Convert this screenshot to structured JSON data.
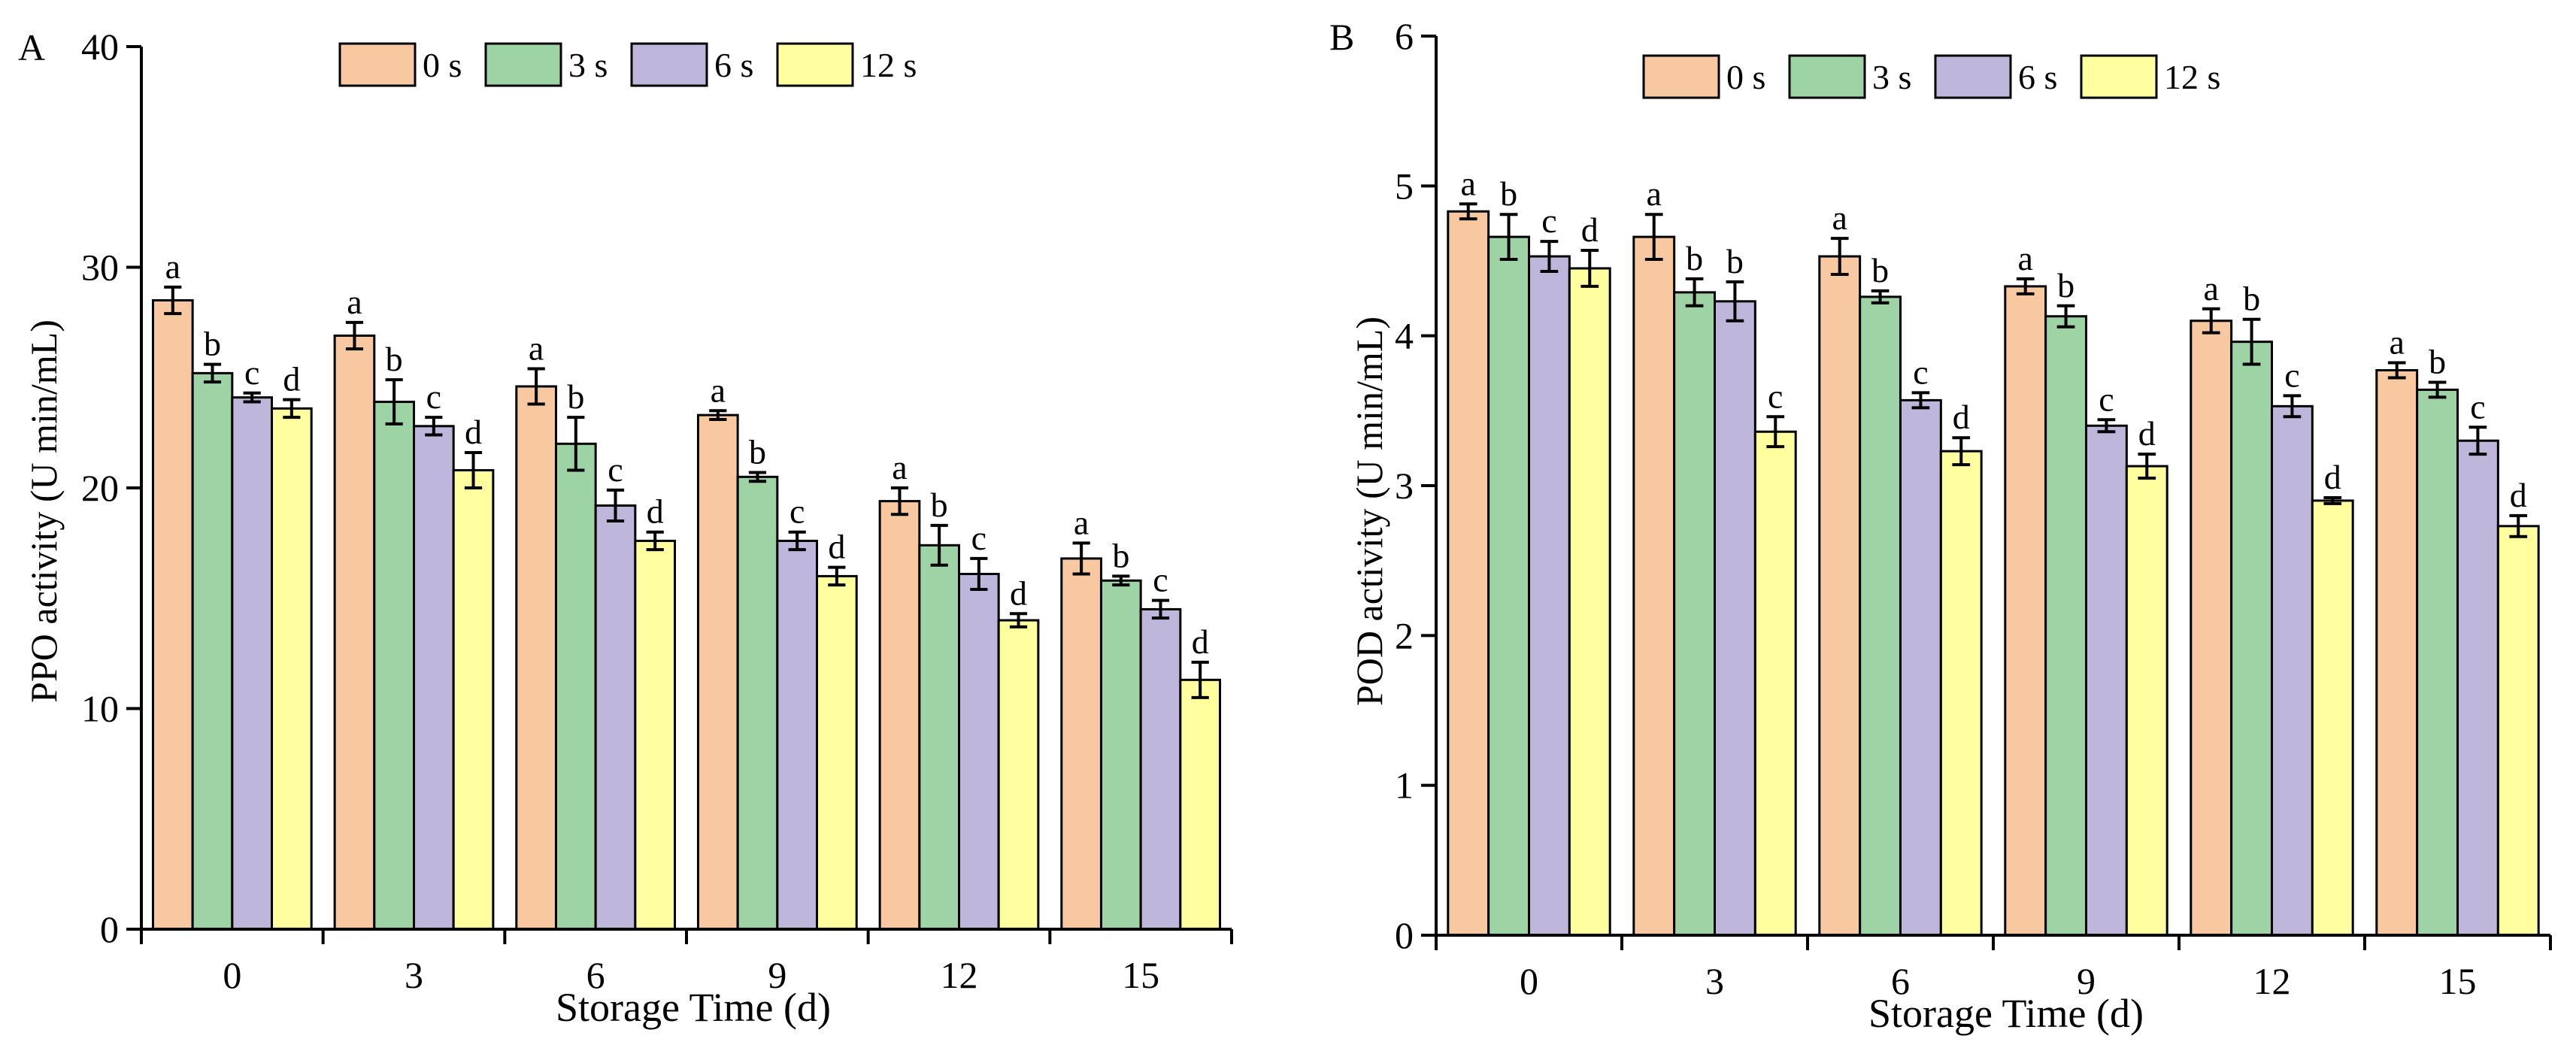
{
  "chart_data": [
    {
      "panel_label": "A",
      "type": "bar",
      "title": "",
      "xlabel": "Storage Time (d)",
      "ylabel": "PPO  activity (U min/mL)",
      "ylim": [
        0,
        40
      ],
      "yticks": [
        0,
        10,
        20,
        30,
        40
      ],
      "categories": [
        "0",
        "3",
        "6",
        "9",
        "12",
        "15"
      ],
      "legend_position": "top-center",
      "series": [
        {
          "name": "0 s",
          "color": "#F8C8A0",
          "values": [
            28.5,
            26.9,
            24.6,
            23.3,
            19.4,
            16.8
          ],
          "errors": [
            0.6,
            0.6,
            0.8,
            0.2,
            0.6,
            0.7
          ],
          "letters": [
            "a",
            "a",
            "a",
            "a",
            "a",
            "a"
          ]
        },
        {
          "name": "3 s",
          "color": "#9DD3A5",
          "values": [
            25.2,
            23.9,
            22.0,
            20.5,
            17.4,
            15.8
          ],
          "errors": [
            0.4,
            1.0,
            1.2,
            0.2,
            0.9,
            0.2
          ],
          "letters": [
            "b",
            "b",
            "b",
            "b",
            "b",
            "b"
          ]
        },
        {
          "name": "6 s",
          "color": "#BFB6DB",
          "values": [
            24.1,
            22.8,
            19.2,
            17.6,
            16.1,
            14.5
          ],
          "errors": [
            0.2,
            0.4,
            0.7,
            0.4,
            0.7,
            0.4
          ],
          "letters": [
            "c",
            "c",
            "c",
            "c",
            "c",
            "c"
          ]
        },
        {
          "name": "12 s",
          "color": "#FFFF9F",
          "values": [
            23.6,
            20.8,
            17.6,
            16.0,
            14.0,
            11.3
          ],
          "errors": [
            0.4,
            0.8,
            0.4,
            0.4,
            0.3,
            0.8
          ],
          "letters": [
            "d",
            "d",
            "d",
            "d",
            "d",
            "d"
          ]
        }
      ]
    },
    {
      "panel_label": "B",
      "type": "bar",
      "title": "",
      "xlabel": "Storage Time (d)",
      "ylabel": "POD activity (U min/mL)",
      "ylim": [
        0,
        6
      ],
      "yticks": [
        0,
        1,
        2,
        3,
        4,
        5,
        6
      ],
      "categories": [
        "0",
        "3",
        "6",
        "9",
        "12",
        "15"
      ],
      "legend_position": "top-center",
      "series": [
        {
          "name": "0 s",
          "color": "#F8C8A0",
          "values": [
            4.83,
            4.66,
            4.53,
            4.33,
            4.1,
            3.77
          ],
          "errors": [
            0.05,
            0.15,
            0.12,
            0.05,
            0.08,
            0.05
          ],
          "letters": [
            "a",
            "a",
            "a",
            "a",
            "a",
            "a"
          ]
        },
        {
          "name": "3 s",
          "color": "#9DD3A5",
          "values": [
            4.66,
            4.29,
            4.26,
            4.13,
            3.96,
            3.64
          ],
          "errors": [
            0.15,
            0.09,
            0.04,
            0.07,
            0.15,
            0.05
          ],
          "letters": [
            "b",
            "b",
            "b",
            "b",
            "b",
            "b"
          ]
        },
        {
          "name": "6 s",
          "color": "#BFB6DB",
          "values": [
            4.53,
            4.23,
            3.57,
            3.4,
            3.53,
            3.3
          ],
          "errors": [
            0.1,
            0.13,
            0.05,
            0.04,
            0.07,
            0.09
          ],
          "letters": [
            "c",
            "b",
            "c",
            "c",
            "c",
            "c"
          ]
        },
        {
          "name": "12 s",
          "color": "#FFFF9F",
          "values": [
            4.45,
            3.36,
            3.23,
            3.13,
            2.9,
            2.73
          ],
          "errors": [
            0.12,
            0.1,
            0.09,
            0.08,
            0.02,
            0.07
          ],
          "letters": [
            "d",
            "c",
            "d",
            "d",
            "d",
            "d"
          ]
        }
      ]
    }
  ]
}
